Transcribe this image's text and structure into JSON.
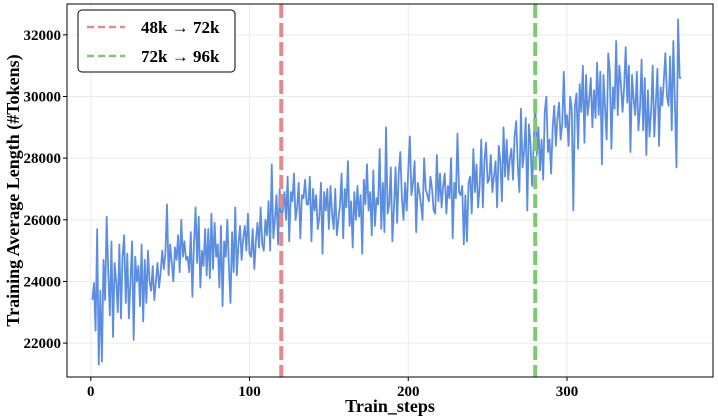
{
  "chart_data": {
    "type": "line",
    "xlabel": "Train_steps",
    "ylabel": "Training Average Length (#Tokens)",
    "xlim": [
      -15,
      392
    ],
    "ylim": [
      20900,
      33000
    ],
    "x_ticks": [
      0,
      100,
      200,
      300
    ],
    "y_ticks": [
      22000,
      24000,
      26000,
      28000,
      30000,
      32000
    ],
    "grid": true,
    "legend_position": "top-left",
    "line_color": "#5b8ee0",
    "series": [
      {
        "x_start": 1,
        "x_step": 1,
        "values": [
          23400,
          23950,
          22400,
          25700,
          21300,
          23700,
          21400,
          24700,
          23400,
          26100,
          24300,
          22900,
          25300,
          22200,
          24600,
          24000,
          23000,
          25200,
          22800,
          24800,
          25500,
          23300,
          24900,
          22800,
          24000,
          25300,
          22100,
          24800,
          24000,
          24500,
          23200,
          25200,
          22700,
          24700,
          23300,
          25000,
          24000,
          23700,
          24500,
          23400,
          24000,
          24600,
          23800,
          24300,
          25000,
          24400,
          24900,
          26500,
          24200,
          25200,
          24600,
          24000,
          25100,
          24700,
          25500,
          24300,
          26000,
          24800,
          25300,
          24700,
          24800,
          24300,
          25600,
          23500,
          25200,
          26400,
          24600,
          26100,
          23800,
          25000,
          24500,
          25700,
          24200,
          25700,
          24100,
          26200,
          24400,
          25900,
          24800,
          25200,
          23800,
          25800,
          23200,
          25300,
          24800,
          26000,
          24500,
          23300,
          25600,
          24300,
          26400,
          24200,
          25200,
          25800,
          24700,
          25400,
          25800,
          25000,
          26200,
          24900,
          24800,
          25700,
          24400,
          25300,
          25900,
          25100,
          26400,
          25200,
          25000,
          26000,
          25500,
          26600,
          25000,
          27800,
          25400,
          26000,
          26800,
          25200,
          27000,
          26000,
          26300,
          26900,
          26000,
          27400,
          25300,
          26900,
          26600,
          27500,
          26000,
          26400,
          27200,
          25400,
          26800,
          26700,
          27300,
          26500,
          26500,
          27400,
          25300,
          27000,
          26300,
          26800,
          25700,
          26100,
          27200,
          24900,
          26900,
          26300,
          27000,
          25700,
          27100,
          26200,
          25700,
          27000,
          25500,
          26000,
          26500,
          27500,
          25400,
          27000,
          26400,
          27900,
          25800,
          26600,
          25100,
          26900,
          26000,
          27100,
          26100,
          26800,
          24900,
          27300,
          26500,
          27800,
          26300,
          26900,
          25500,
          27600,
          25800,
          26700,
          26500,
          28300,
          25700,
          27200,
          25600,
          29000,
          26200,
          26500,
          27700,
          25300,
          26400,
          27700,
          25900,
          27500,
          28200,
          26700,
          26000,
          27200,
          26300,
          27600,
          28700,
          26800,
          27200,
          27900,
          25600,
          27200,
          26900,
          26500,
          26000,
          28000,
          27000,
          26800,
          26600,
          27400,
          27000,
          26300,
          26200,
          28100,
          26600,
          27500,
          26400,
          27100,
          27500,
          26200,
          27100,
          26700,
          28000,
          25400,
          27200,
          26700,
          28800,
          26900,
          26800,
          27100,
          25200,
          26800,
          25300,
          27200,
          27400,
          26200,
          28300,
          26900,
          27800,
          26400,
          27100,
          28600,
          26400,
          27900,
          28500,
          27200,
          27300,
          28100,
          26900,
          27400,
          27900,
          26400,
          28400,
          27900,
          26600,
          29000,
          27400,
          28600,
          27300,
          28000,
          28300,
          27300,
          28700,
          29200,
          27800,
          26900,
          29600,
          27700,
          28200,
          29300,
          26300,
          29100,
          28500,
          27100,
          28400,
          29900,
          28100,
          29000,
          27600,
          28600,
          27300,
          29500,
          30000,
          28200,
          28600,
          27500,
          29000,
          29700,
          28400,
          29300,
          29800,
          28600,
          29100,
          30800,
          29000,
          29400,
          28400,
          30000,
          29600,
          26300,
          29700,
          30100,
          28300,
          30400,
          29500,
          31000,
          28500,
          30700,
          29400,
          29900,
          30600,
          29000,
          30200,
          29300,
          31100,
          29400,
          30800,
          27800,
          30700,
          29600,
          28600,
          31400,
          30800,
          28300,
          30300,
          29600,
          31800,
          29400,
          31000,
          30400,
          29500,
          30300,
          31600,
          29800,
          31000,
          28200,
          30700,
          29900,
          29400,
          30800,
          28900,
          29600,
          31200,
          28900,
          30600,
          28100,
          30200,
          28700,
          29500,
          31000,
          28700,
          29800,
          30900,
          28400,
          30300,
          29700,
          30500,
          31400,
          30000,
          29700,
          31300,
          28900,
          31800,
          29800,
          27700,
          32500,
          30600,
          30600
        ]
      }
    ],
    "vlines": [
      {
        "x": 120,
        "label": "48k → 72k",
        "color": "#e8888a"
      },
      {
        "x": 280,
        "label": "72k → 96k",
        "color": "#7ecb6f"
      }
    ]
  }
}
